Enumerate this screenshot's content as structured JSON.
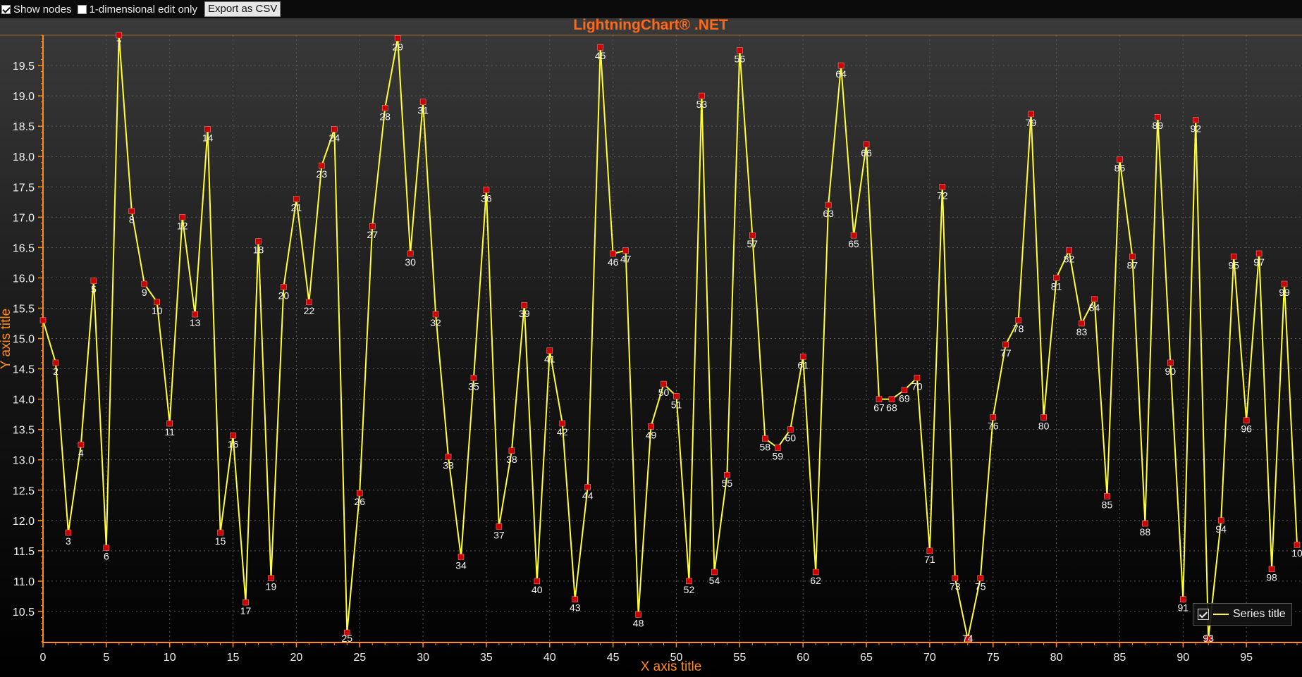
{
  "toolbar": {
    "show_nodes_label": "Show nodes",
    "show_nodes_checked": true,
    "one_dim_label": "1-dimensional edit only",
    "one_dim_checked": false,
    "export_label": "Export as CSV"
  },
  "colors": {
    "background_top": "#3a3a3a",
    "background_bottom": "#000000",
    "title": "#ff6a1a",
    "axis": "#ff8c1a",
    "series_line": "#ffff33",
    "point_marker": "#cc0000",
    "grid": "#5a5a5a"
  },
  "chart_data": {
    "type": "line",
    "title": "LightningChart® .NET",
    "xlabel": "X axis title",
    "ylabel": "Y axis title",
    "xlim": [
      0,
      99
    ],
    "ylim": [
      10.0,
      20.0
    ],
    "x_ticks": [
      0,
      5,
      10,
      15,
      20,
      25,
      30,
      35,
      40,
      45,
      50,
      55,
      60,
      65,
      70,
      75,
      80,
      85,
      90,
      95
    ],
    "y_ticks": [
      10.5,
      11.0,
      11.5,
      12.0,
      12.5,
      13.0,
      13.5,
      14.0,
      14.5,
      15.0,
      15.5,
      16.0,
      16.5,
      17.0,
      17.5,
      18.0,
      18.5,
      19.0,
      19.5
    ],
    "grid": true,
    "legend": "bottom-right",
    "show_point_labels": true,
    "series": [
      {
        "name": "Series title",
        "x": [
          0,
          1,
          2,
          3,
          4,
          5,
          6,
          7,
          8,
          9,
          10,
          11,
          12,
          13,
          14,
          15,
          16,
          17,
          18,
          19,
          20,
          21,
          22,
          23,
          24,
          25,
          26,
          27,
          28,
          29,
          30,
          31,
          32,
          33,
          34,
          35,
          36,
          37,
          38,
          39,
          40,
          41,
          42,
          43,
          44,
          45,
          46,
          47,
          48,
          49,
          50,
          51,
          52,
          53,
          54,
          55,
          56,
          57,
          58,
          59,
          60,
          61,
          62,
          63,
          64,
          65,
          66,
          67,
          68,
          69,
          70,
          71,
          72,
          73,
          74,
          75,
          76,
          77,
          78,
          79,
          80,
          81,
          82,
          83,
          84,
          85,
          86,
          87,
          88,
          89,
          90,
          91,
          92,
          93,
          94,
          95,
          96,
          97,
          98,
          99
        ],
        "y": [
          15.3,
          14.6,
          11.8,
          13.25,
          15.95,
          11.55,
          20.0,
          17.1,
          15.9,
          15.6,
          13.6,
          17.0,
          15.4,
          18.45,
          11.8,
          13.4,
          10.65,
          16.6,
          11.05,
          15.85,
          17.3,
          15.6,
          17.85,
          18.45,
          10.15,
          12.45,
          16.85,
          18.8,
          19.95,
          16.4,
          18.9,
          15.4,
          13.05,
          11.4,
          14.35,
          17.45,
          11.9,
          13.15,
          15.55,
          11.0,
          14.8,
          13.6,
          10.7,
          12.55,
          19.8,
          16.4,
          16.45,
          10.45,
          13.55,
          14.25,
          14.05,
          11.0,
          19.0,
          11.15,
          12.75,
          19.75,
          16.7,
          13.35,
          13.2,
          13.5,
          14.7,
          11.15,
          17.2,
          19.5,
          16.7,
          18.2,
          14.0,
          14.0,
          14.15,
          14.35,
          11.5,
          17.5,
          11.05,
          10.05,
          11.05,
          13.7,
          14.9,
          15.3,
          18.7,
          13.7,
          16.0,
          16.45,
          15.25,
          15.65,
          12.4,
          17.95,
          16.35,
          11.95,
          18.65,
          14.6,
          10.7,
          18.6,
          10.05,
          12.0,
          16.35,
          13.65,
          16.4,
          11.2,
          15.9,
          11.6
        ],
        "labels": [
          "",
          "2",
          "3",
          "4",
          "5",
          "6",
          "7",
          "8",
          "9",
          "10",
          "11",
          "12",
          "13",
          "14",
          "15",
          "16",
          "17",
          "18",
          "19",
          "20",
          "21",
          "22",
          "23",
          "24",
          "25",
          "26",
          "27",
          "28",
          "29",
          "30",
          "31",
          "32",
          "33",
          "34",
          "35",
          "36",
          "37",
          "38",
          "39",
          "40",
          "41",
          "42",
          "43",
          "44",
          "45",
          "46",
          "47",
          "48",
          "49",
          "50",
          "51",
          "52",
          "53",
          "54",
          "55",
          "56",
          "57",
          "58",
          "59",
          "60",
          "61",
          "62",
          "63",
          "64",
          "65",
          "66",
          "67",
          "68",
          "69",
          "70",
          "71",
          "72",
          "73",
          "74",
          "75",
          "76",
          "77",
          "78",
          "79",
          "80",
          "81",
          "82",
          "83",
          "84",
          "85",
          "86",
          "87",
          "88",
          "89",
          "90",
          "91",
          "92",
          "93",
          "94",
          "95",
          "96",
          "97",
          "98",
          "99",
          "10"
        ]
      }
    ]
  },
  "legend": {
    "label": "Series title",
    "checked": true
  }
}
